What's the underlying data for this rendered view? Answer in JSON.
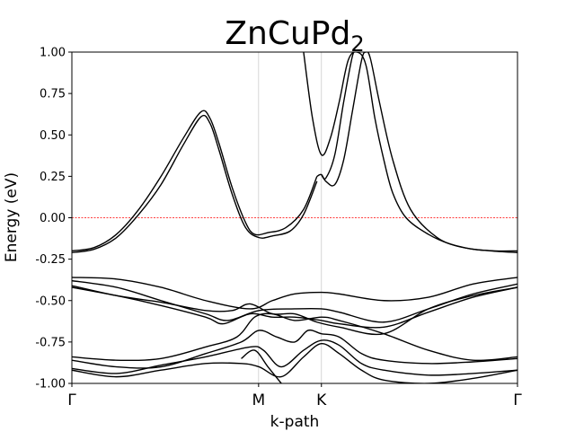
{
  "chart_data": {
    "type": "line",
    "title": "ZnCuPd",
    "title_subscript": "2",
    "xlabel": "k-path",
    "ylabel": "Energy (eV)",
    "ylim": [
      -1.0,
      1.0
    ],
    "xlim": [
      0,
      1
    ],
    "yticks": [
      "-1.00",
      "-0.75",
      "-0.50",
      "-0.25",
      "0.00",
      "0.25",
      "0.50",
      "0.75",
      "1.00"
    ],
    "ytick_values": [
      -1.0,
      -0.75,
      -0.5,
      -0.25,
      0.0,
      0.25,
      0.5,
      0.75,
      1.0
    ],
    "high_symmetry_points": [
      {
        "label": "Γ",
        "x": 0.0
      },
      {
        "label": "M",
        "x": 0.419
      },
      {
        "label": "K",
        "x": 0.56
      },
      {
        "label": "Γ",
        "x": 1.0
      }
    ],
    "fermi_level": 0.0,
    "fermi_color": "#ff0000",
    "band_color": "#000000",
    "series": [
      {
        "x": [
          0,
          0.05,
          0.1,
          0.15,
          0.2,
          0.25,
          0.29,
          0.31,
          0.33,
          0.36,
          0.39,
          0.41,
          0.44,
          0.48,
          0.52,
          0.55
        ],
        "values": [
          -0.2,
          -0.18,
          -0.1,
          0.05,
          0.25,
          0.48,
          0.64,
          0.6,
          0.45,
          0.18,
          -0.03,
          -0.1,
          -0.09,
          -0.06,
          0.05,
          0.25
        ]
      },
      {
        "x": [
          0,
          0.05,
          0.1,
          0.15,
          0.2,
          0.25,
          0.29,
          0.31,
          0.33,
          0.36,
          0.39,
          0.42,
          0.45,
          0.49,
          0.52,
          0.55
        ],
        "values": [
          -0.21,
          -0.19,
          -0.12,
          0.02,
          0.2,
          0.44,
          0.61,
          0.57,
          0.41,
          0.14,
          -0.06,
          -0.12,
          -0.11,
          -0.08,
          0.02,
          0.22
        ]
      },
      {
        "x": [
          0.52,
          0.54,
          0.56,
          0.58,
          0.6,
          0.62,
          0.64,
          0.66,
          0.68,
          0.7,
          0.72,
          0.75,
          0.8,
          0.85,
          0.9,
          0.95,
          1.0
        ],
        "values": [
          1.0,
          0.6,
          0.38,
          0.48,
          0.7,
          0.95,
          1.0,
          0.92,
          0.6,
          0.35,
          0.15,
          0.0,
          -0.1,
          -0.16,
          -0.19,
          -0.2,
          -0.2
        ]
      },
      {
        "x": [
          0.55,
          0.56,
          0.57,
          0.59,
          0.61,
          0.63,
          0.65,
          0.66,
          0.67,
          0.69,
          0.72,
          0.76,
          0.82,
          0.88,
          0.94,
          1.0
        ],
        "values": [
          0.25,
          0.26,
          0.22,
          0.2,
          0.35,
          0.65,
          0.95,
          1.0,
          0.96,
          0.7,
          0.35,
          0.05,
          -0.12,
          -0.18,
          -0.2,
          -0.21
        ]
      },
      {
        "x": [
          0.56,
          0.57,
          0.59,
          0.61,
          0.63,
          0.64
        ],
        "values": [
          0.26,
          0.24,
          0.38,
          0.7,
          0.98,
          1.0
        ]
      },
      {
        "x": [
          0,
          0.1,
          0.2,
          0.3,
          0.4,
          0.45,
          0.5,
          0.56,
          0.6,
          0.7,
          0.8,
          0.9,
          1.0
        ],
        "values": [
          -0.36,
          -0.37,
          -0.42,
          -0.5,
          -0.55,
          -0.5,
          -0.46,
          -0.45,
          -0.46,
          -0.5,
          -0.48,
          -0.4,
          -0.36
        ]
      },
      {
        "x": [
          0,
          0.1,
          0.2,
          0.3,
          0.35,
          0.42,
          0.5,
          0.56,
          0.6,
          0.7,
          0.8,
          0.9,
          1.0
        ],
        "values": [
          -0.38,
          -0.42,
          -0.5,
          -0.58,
          -0.62,
          -0.56,
          -0.55,
          -0.55,
          -0.57,
          -0.63,
          -0.55,
          -0.46,
          -0.4
        ]
      },
      {
        "x": [
          0,
          0.1,
          0.2,
          0.3,
          0.34,
          0.4,
          0.45,
          0.5,
          0.56,
          0.6,
          0.7,
          0.8,
          0.9,
          1.0
        ],
        "values": [
          -0.42,
          -0.47,
          -0.53,
          -0.6,
          -0.64,
          -0.58,
          -0.6,
          -0.6,
          -0.62,
          -0.64,
          -0.66,
          -0.57,
          -0.48,
          -0.42
        ]
      },
      {
        "x": [
          0,
          0.1,
          0.2,
          0.3,
          0.36,
          0.4,
          0.45,
          0.5,
          0.55,
          0.6,
          0.7,
          0.8,
          0.9,
          1.0
        ],
        "values": [
          -0.41,
          -0.47,
          -0.51,
          -0.56,
          -0.56,
          -0.52,
          -0.58,
          -0.58,
          -0.63,
          -0.66,
          -0.7,
          -0.55,
          -0.47,
          -0.42
        ]
      },
      {
        "x": [
          0,
          0.1,
          0.2,
          0.3,
          0.37,
          0.41,
          0.45,
          0.5,
          0.56,
          0.6,
          0.7,
          0.8,
          0.9,
          1.0
        ],
        "values": [
          -0.84,
          -0.86,
          -0.85,
          -0.78,
          -0.72,
          -0.6,
          -0.58,
          -0.62,
          -0.6,
          -0.62,
          -0.7,
          -0.8,
          -0.86,
          -0.84
        ]
      },
      {
        "x": [
          0,
          0.1,
          0.2,
          0.3,
          0.38,
          0.42,
          0.46,
          0.5,
          0.53,
          0.56,
          0.6,
          0.65,
          0.7,
          0.8,
          0.9,
          1.0
        ],
        "values": [
          -0.86,
          -0.9,
          -0.9,
          -0.82,
          -0.75,
          -0.68,
          -0.72,
          -0.75,
          -0.68,
          -0.7,
          -0.72,
          -0.82,
          -0.86,
          -0.88,
          -0.87,
          -0.85
        ]
      },
      {
        "x": [
          0,
          0.1,
          0.2,
          0.3,
          0.4,
          0.43,
          0.47,
          0.52,
          0.56,
          0.6,
          0.65,
          0.7,
          0.8,
          0.9,
          1.0
        ],
        "values": [
          -0.91,
          -0.94,
          -0.89,
          -0.84,
          -0.78,
          -0.8,
          -0.9,
          -0.8,
          -0.74,
          -0.77,
          -0.88,
          -0.92,
          -0.95,
          -0.94,
          -0.92
        ]
      },
      {
        "x": [
          0,
          0.1,
          0.2,
          0.3,
          0.38,
          0.42,
          0.47,
          0.52,
          0.56,
          0.6,
          0.65,
          0.7,
          0.8,
          0.9,
          1.0
        ],
        "values": [
          -0.92,
          -0.96,
          -0.92,
          -0.88,
          -0.88,
          -0.9,
          -0.96,
          -0.84,
          -0.76,
          -0.82,
          -0.92,
          -0.98,
          -1.0,
          -0.97,
          -0.92
        ]
      },
      {
        "x": [
          0.38,
          0.41,
          0.44,
          0.47
        ],
        "values": [
          -0.85,
          -0.8,
          -0.9,
          -1.0
        ]
      }
    ]
  }
}
